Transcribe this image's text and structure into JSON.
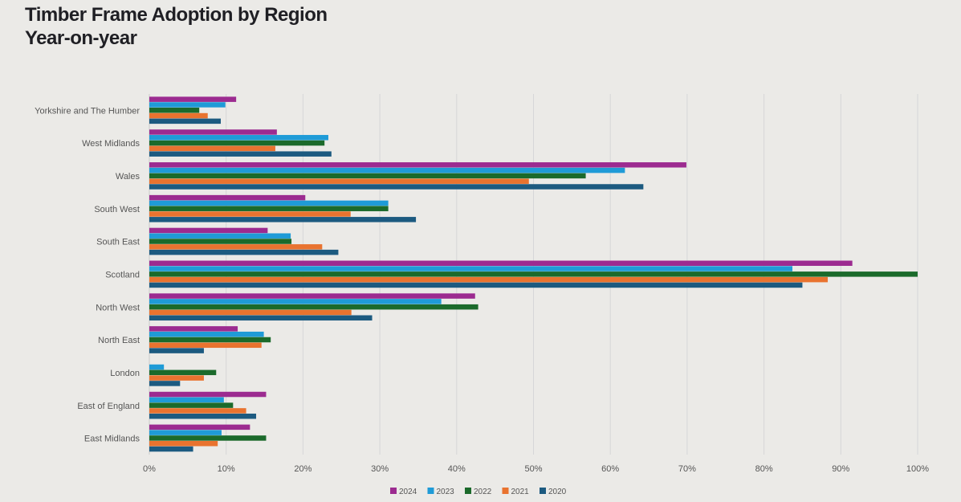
{
  "chart_data": {
    "type": "bar",
    "orientation": "horizontal",
    "title": "Timber Frame Adoption by Region",
    "subtitle": "Year-on-year",
    "xlabel": "",
    "ylabel": "",
    "xlim": [
      0,
      100
    ],
    "x_ticks": [
      "0%",
      "10%",
      "20%",
      "30%",
      "40%",
      "50%",
      "60%",
      "70%",
      "80%",
      "90%",
      "100%"
    ],
    "grid": "vertical",
    "legend_position": "bottom",
    "categories": [
      "Yorkshire and The Humber",
      "West Midlands",
      "Wales",
      "South West",
      "South East",
      "Scotland",
      "North West",
      "North East",
      "London",
      "East of England",
      "East Midlands"
    ],
    "series": [
      {
        "name": "2024",
        "color": "#9c2b90",
        "values": [
          11.3,
          16.6,
          69.9,
          20.3,
          15.4,
          91.5,
          42.4,
          11.5,
          0,
          15.2,
          13.1
        ]
      },
      {
        "name": "2023",
        "color": "#1f9bd7",
        "values": [
          9.9,
          23.3,
          61.9,
          31.1,
          18.4,
          83.7,
          38.0,
          14.9,
          1.9,
          9.7,
          9.4
        ]
      },
      {
        "name": "2022",
        "color": "#1b6a2b",
        "values": [
          6.5,
          22.8,
          56.8,
          31.1,
          18.5,
          100,
          42.8,
          15.8,
          8.7,
          10.9,
          15.2
        ]
      },
      {
        "name": "2021",
        "color": "#e9732f",
        "values": [
          7.6,
          16.4,
          49.4,
          26.2,
          22.5,
          88.3,
          26.3,
          14.6,
          7.1,
          12.6,
          8.9
        ]
      },
      {
        "name": "2020",
        "color": "#1c5a80",
        "values": [
          9.3,
          23.7,
          64.3,
          34.7,
          24.6,
          85.0,
          29.0,
          7.1,
          4.0,
          13.9,
          5.7
        ]
      }
    ]
  }
}
